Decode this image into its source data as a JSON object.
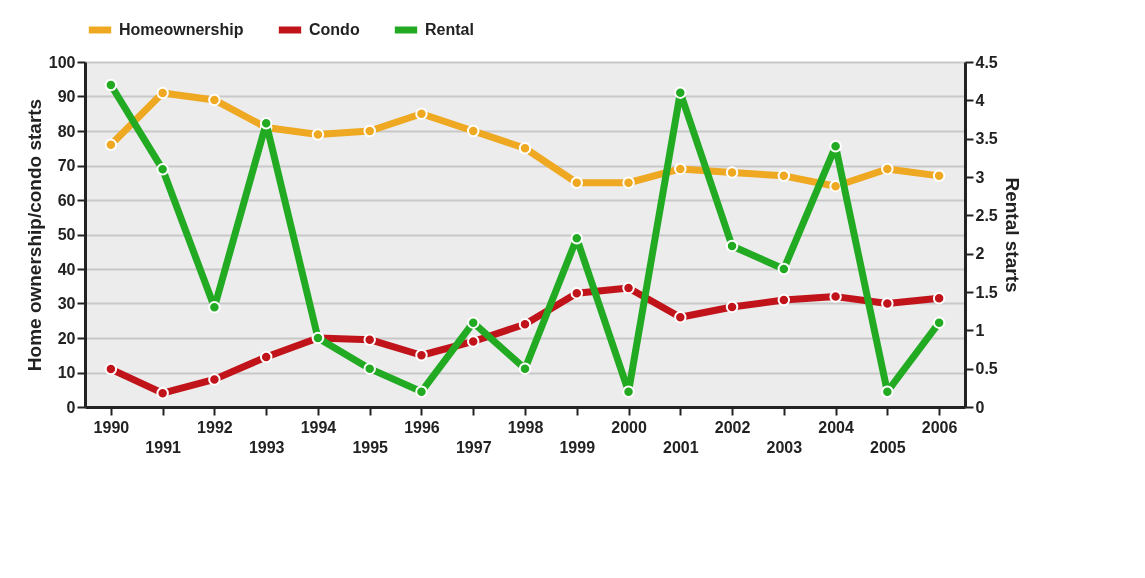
{
  "chart_data": {
    "type": "line",
    "xlabel": null,
    "ylabel": "Home ownership/condo starts",
    "y2label": "Rental starts",
    "categories": [
      "1990",
      "1991",
      "1992",
      "1993",
      "1994",
      "1995",
      "1996",
      "1997",
      "1998",
      "1999",
      "2000",
      "2001",
      "2002",
      "2003",
      "2004",
      "2005",
      "2006"
    ],
    "series": [
      {
        "name": "Homeownership",
        "color": "#eea821",
        "values": [
          76,
          91,
          89,
          81,
          79,
          80,
          85,
          80,
          75,
          65,
          65,
          69,
          68,
          67,
          64,
          69,
          67
        ]
      },
      {
        "name": "Condo",
        "color": "#c0141a",
        "values": [
          11,
          4,
          8,
          14.5,
          20,
          19.5,
          15,
          19,
          24,
          33,
          34.5,
          26,
          29,
          31,
          32,
          30,
          31.5
        ]
      },
      {
        "name": "Rental",
        "color": "#22aa22",
        "axis": "y2",
        "values": [
          4.2,
          3.1,
          1.3,
          3.7,
          0.9,
          0.5,
          0.2,
          1.1,
          0.5,
          2.2,
          0.2,
          4.1,
          2.1,
          1.8,
          3.4,
          0.2,
          1.1
        ]
      }
    ],
    "ylim": [
      0,
      100
    ],
    "yticks": [
      0,
      10,
      20,
      30,
      40,
      50,
      60,
      70,
      80,
      90,
      100
    ],
    "y2lim": [
      0,
      4.5
    ],
    "y2ticks": [
      0,
      0.5,
      1,
      1.5,
      2,
      2.5,
      3,
      3.5,
      4,
      4.5
    ],
    "grid": "y",
    "legend": "top",
    "marker": "circle",
    "line_style": "solid"
  }
}
